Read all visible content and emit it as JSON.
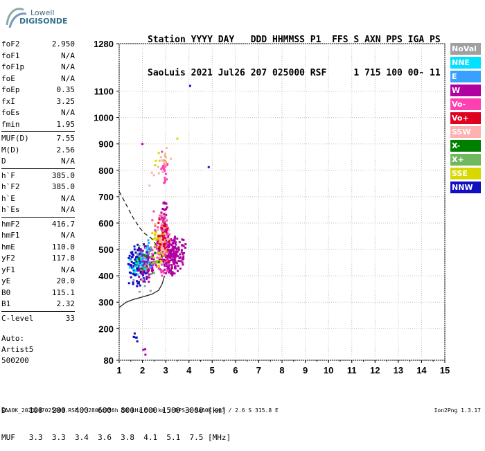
{
  "logo": {
    "line1": "Lowell",
    "line2": "DIGISONDE"
  },
  "header": {
    "line1": "Station YYYY DAY   DDD HHMMSS P1  FFS S AXN PPS IGA PS",
    "line2": "SaoLuis 2021 Jul26 207 025000 RSF     1 715 100 00- 11"
  },
  "params": {
    "group1": [
      {
        "name": "foF2",
        "value": "2.950"
      },
      {
        "name": "foF1",
        "value": "N/A"
      },
      {
        "name": "foF1p",
        "value": "N/A"
      },
      {
        "name": "foE",
        "value": "N/A"
      },
      {
        "name": "foEp",
        "value": "0.35"
      },
      {
        "name": "fxI",
        "value": "3.25"
      },
      {
        "name": "foEs",
        "value": "N/A"
      },
      {
        "name": "fmin",
        "value": "1.95"
      }
    ],
    "group2": [
      {
        "name": "MUF(D)",
        "value": "7.55"
      },
      {
        "name": "M(D)",
        "value": "2.56"
      },
      {
        "name": "D",
        "value": "N/A"
      }
    ],
    "group3": [
      {
        "name": "h`F",
        "value": "385.0"
      },
      {
        "name": "h`F2",
        "value": "385.0"
      },
      {
        "name": "h`E",
        "value": "N/A"
      },
      {
        "name": "h`Es",
        "value": "N/A"
      }
    ],
    "group4": [
      {
        "name": "hmF2",
        "value": "416.7"
      },
      {
        "name": "hmF1",
        "value": "N/A"
      },
      {
        "name": "hmE",
        "value": "110.0"
      },
      {
        "name": "yF2",
        "value": "117.8"
      },
      {
        "name": "yF1",
        "value": "N/A"
      },
      {
        "name": "yE",
        "value": "20.0"
      },
      {
        "name": "B0",
        "value": "115.1"
      },
      {
        "name": "B1",
        "value": "2.32"
      }
    ],
    "group5": [
      {
        "name": "C-level",
        "value": "33"
      }
    ]
  },
  "autoscaling": {
    "line1": "Auto:",
    "line2": "Artist5",
    "line3": "500200"
  },
  "legend": [
    {
      "label": "NoVal",
      "color": "#a0a0a0"
    },
    {
      "label": "NNE",
      "color": "#00e0ff"
    },
    {
      "label": "E",
      "color": "#3aa0ff"
    },
    {
      "label": "W",
      "color": "#b000a0"
    },
    {
      "label": "Vo-",
      "color": "#ff40b0"
    },
    {
      "label": "Vo+",
      "color": "#e00020"
    },
    {
      "label": "SSW",
      "color": "#ffb0b0"
    },
    {
      "label": "X-",
      "color": "#008000"
    },
    {
      "label": "X+",
      "color": "#70b860"
    },
    {
      "label": "SSE",
      "color": "#d8d800"
    },
    {
      "label": "NNW",
      "color": "#1010c0"
    }
  ],
  "muf_table": {
    "row1": "D     100  200  400  600  800 1000 1500 3000 [km]",
    "row2": "MUF   3.3  3.3  3.4  3.6  3.8  4.1  5.1  7.5 [MHz]"
  },
  "footer": "SAA0K_2021207025000.RSF / 280fx256h 50 kHz 5.0 km / DPS-4 SAA0K 903 / 2.6 S 315.8 E",
  "version": "Ion2Png 1.3.17",
  "chart_data": {
    "type": "scatter",
    "x_ticks": [
      1,
      2,
      3,
      4,
      5,
      6,
      7,
      8,
      9,
      10,
      11,
      12,
      13,
      14,
      15
    ],
    "y_ticks": [
      80,
      200,
      300,
      400,
      500,
      600,
      700,
      800,
      900,
      1000,
      1100,
      1280
    ],
    "xlim": [
      1,
      15
    ],
    "ylim": [
      80,
      1280
    ],
    "grid": true,
    "clusters": [
      {
        "color_index": 10,
        "fmin": 1.3,
        "fmax": 2.4,
        "hmin": 350,
        "hmax": 530,
        "n": 130
      },
      {
        "color_index": 3,
        "fmin": 1.8,
        "fmax": 2.6,
        "hmin": 370,
        "hmax": 520,
        "n": 90
      },
      {
        "color_index": 3,
        "fmin": 2.6,
        "fmax": 3.9,
        "hmin": 400,
        "hmax": 560,
        "n": 220
      },
      {
        "color_index": 3,
        "fmin": 2.8,
        "fmax": 3.1,
        "hmin": 500,
        "hmax": 700,
        "n": 60
      },
      {
        "color_index": 4,
        "fmin": 2.4,
        "fmax": 3.2,
        "hmin": 380,
        "hmax": 650,
        "n": 90
      },
      {
        "color_index": 9,
        "fmin": 2.2,
        "fmax": 3.1,
        "hmin": 380,
        "hmax": 620,
        "n": 45
      },
      {
        "color_index": 6,
        "fmin": 2.6,
        "fmax": 3.2,
        "hmin": 430,
        "hmax": 640,
        "n": 40
      },
      {
        "color_index": 5,
        "fmin": 2.5,
        "fmax": 3.2,
        "hmin": 420,
        "hmax": 640,
        "n": 30
      },
      {
        "color_index": 1,
        "fmin": 1.4,
        "fmax": 2.3,
        "hmin": 380,
        "hmax": 520,
        "n": 25
      },
      {
        "color_index": 2,
        "fmin": 1.8,
        "fmax": 2.6,
        "hmin": 400,
        "hmax": 560,
        "n": 20
      },
      {
        "color_index": 4,
        "fmin": 2.8,
        "fmax": 3.1,
        "hmin": 740,
        "hmax": 880,
        "n": 22
      },
      {
        "color_index": 6,
        "fmin": 2.0,
        "fmax": 3.4,
        "hmin": 720,
        "hmax": 920,
        "n": 14
      },
      {
        "color_index": 9,
        "fmin": 2.3,
        "fmax": 3.5,
        "hmin": 740,
        "hmax": 920,
        "n": 6
      },
      {
        "color_index": 8,
        "fmin": 1.6,
        "fmax": 2.8,
        "hmin": 380,
        "hmax": 540,
        "n": 15
      },
      {
        "color_index": 7,
        "fmin": 1.6,
        "fmax": 2.8,
        "hmin": 380,
        "hmax": 540,
        "n": 8
      },
      {
        "color_index": 0,
        "fmin": 1.4,
        "fmax": 2.6,
        "hmin": 300,
        "hmax": 500,
        "n": 8
      },
      {
        "color_index": 10,
        "fmin": 1.6,
        "fmax": 1.8,
        "hmin": 120,
        "hmax": 200,
        "n": 6
      },
      {
        "color_index": 3,
        "fmin": 2.0,
        "fmax": 2.2,
        "hmin": 80,
        "hmax": 150,
        "n": 3
      }
    ],
    "isolated_points": [
      {
        "f": 4.05,
        "h": 1120,
        "color_index": 10
      },
      {
        "f": 4.85,
        "h": 812,
        "color_index": 10
      },
      {
        "f": 2.0,
        "h": 900,
        "color_index": 3
      },
      {
        "f": 3.5,
        "h": 920,
        "color_index": 9
      }
    ],
    "profile_solid": [
      [
        1,
        280
      ],
      [
        1.3,
        300
      ],
      [
        1.6,
        310
      ],
      [
        2.0,
        320
      ],
      [
        2.4,
        330
      ],
      [
        2.7,
        345
      ],
      [
        2.85,
        370
      ],
      [
        2.95,
        400
      ]
    ],
    "profile_dashed": [
      [
        1,
        720
      ],
      [
        1.3,
        670
      ],
      [
        1.6,
        620
      ],
      [
        1.9,
        580
      ],
      [
        2.1,
        560
      ],
      [
        2.35,
        545
      ],
      [
        2.5,
        530
      ],
      [
        2.7,
        500
      ],
      [
        2.85,
        470
      ],
      [
        2.95,
        440
      ]
    ]
  }
}
